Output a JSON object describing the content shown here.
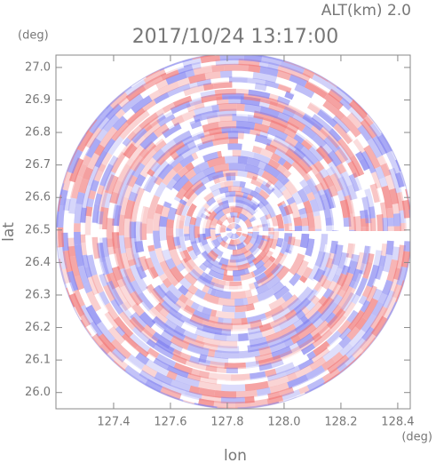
{
  "chart_data": {
    "type": "radar-field",
    "altitude_label": "ALT(km)  2.0",
    "title": "2017/10/24 13:17:00",
    "x_label": "lon",
    "y_label": "lat",
    "x_unit": "(deg)",
    "y_unit": "(deg)",
    "xlim": [
      127.197,
      128.444
    ],
    "ylim": [
      25.95,
      27.038
    ],
    "xticks": [
      127.4,
      127.6,
      127.8,
      {
        "value": 128,
        "label": "128.0"
      },
      128.2,
      128.4
    ],
    "yticks": [
      {
        "value": 26,
        "label": "26.0"
      },
      26.1,
      26.2,
      26.3,
      26.4,
      26.5,
      26.6,
      26.7,
      26.8,
      26.9,
      {
        "value": 27,
        "label": "27.0"
      }
    ]
  }
}
